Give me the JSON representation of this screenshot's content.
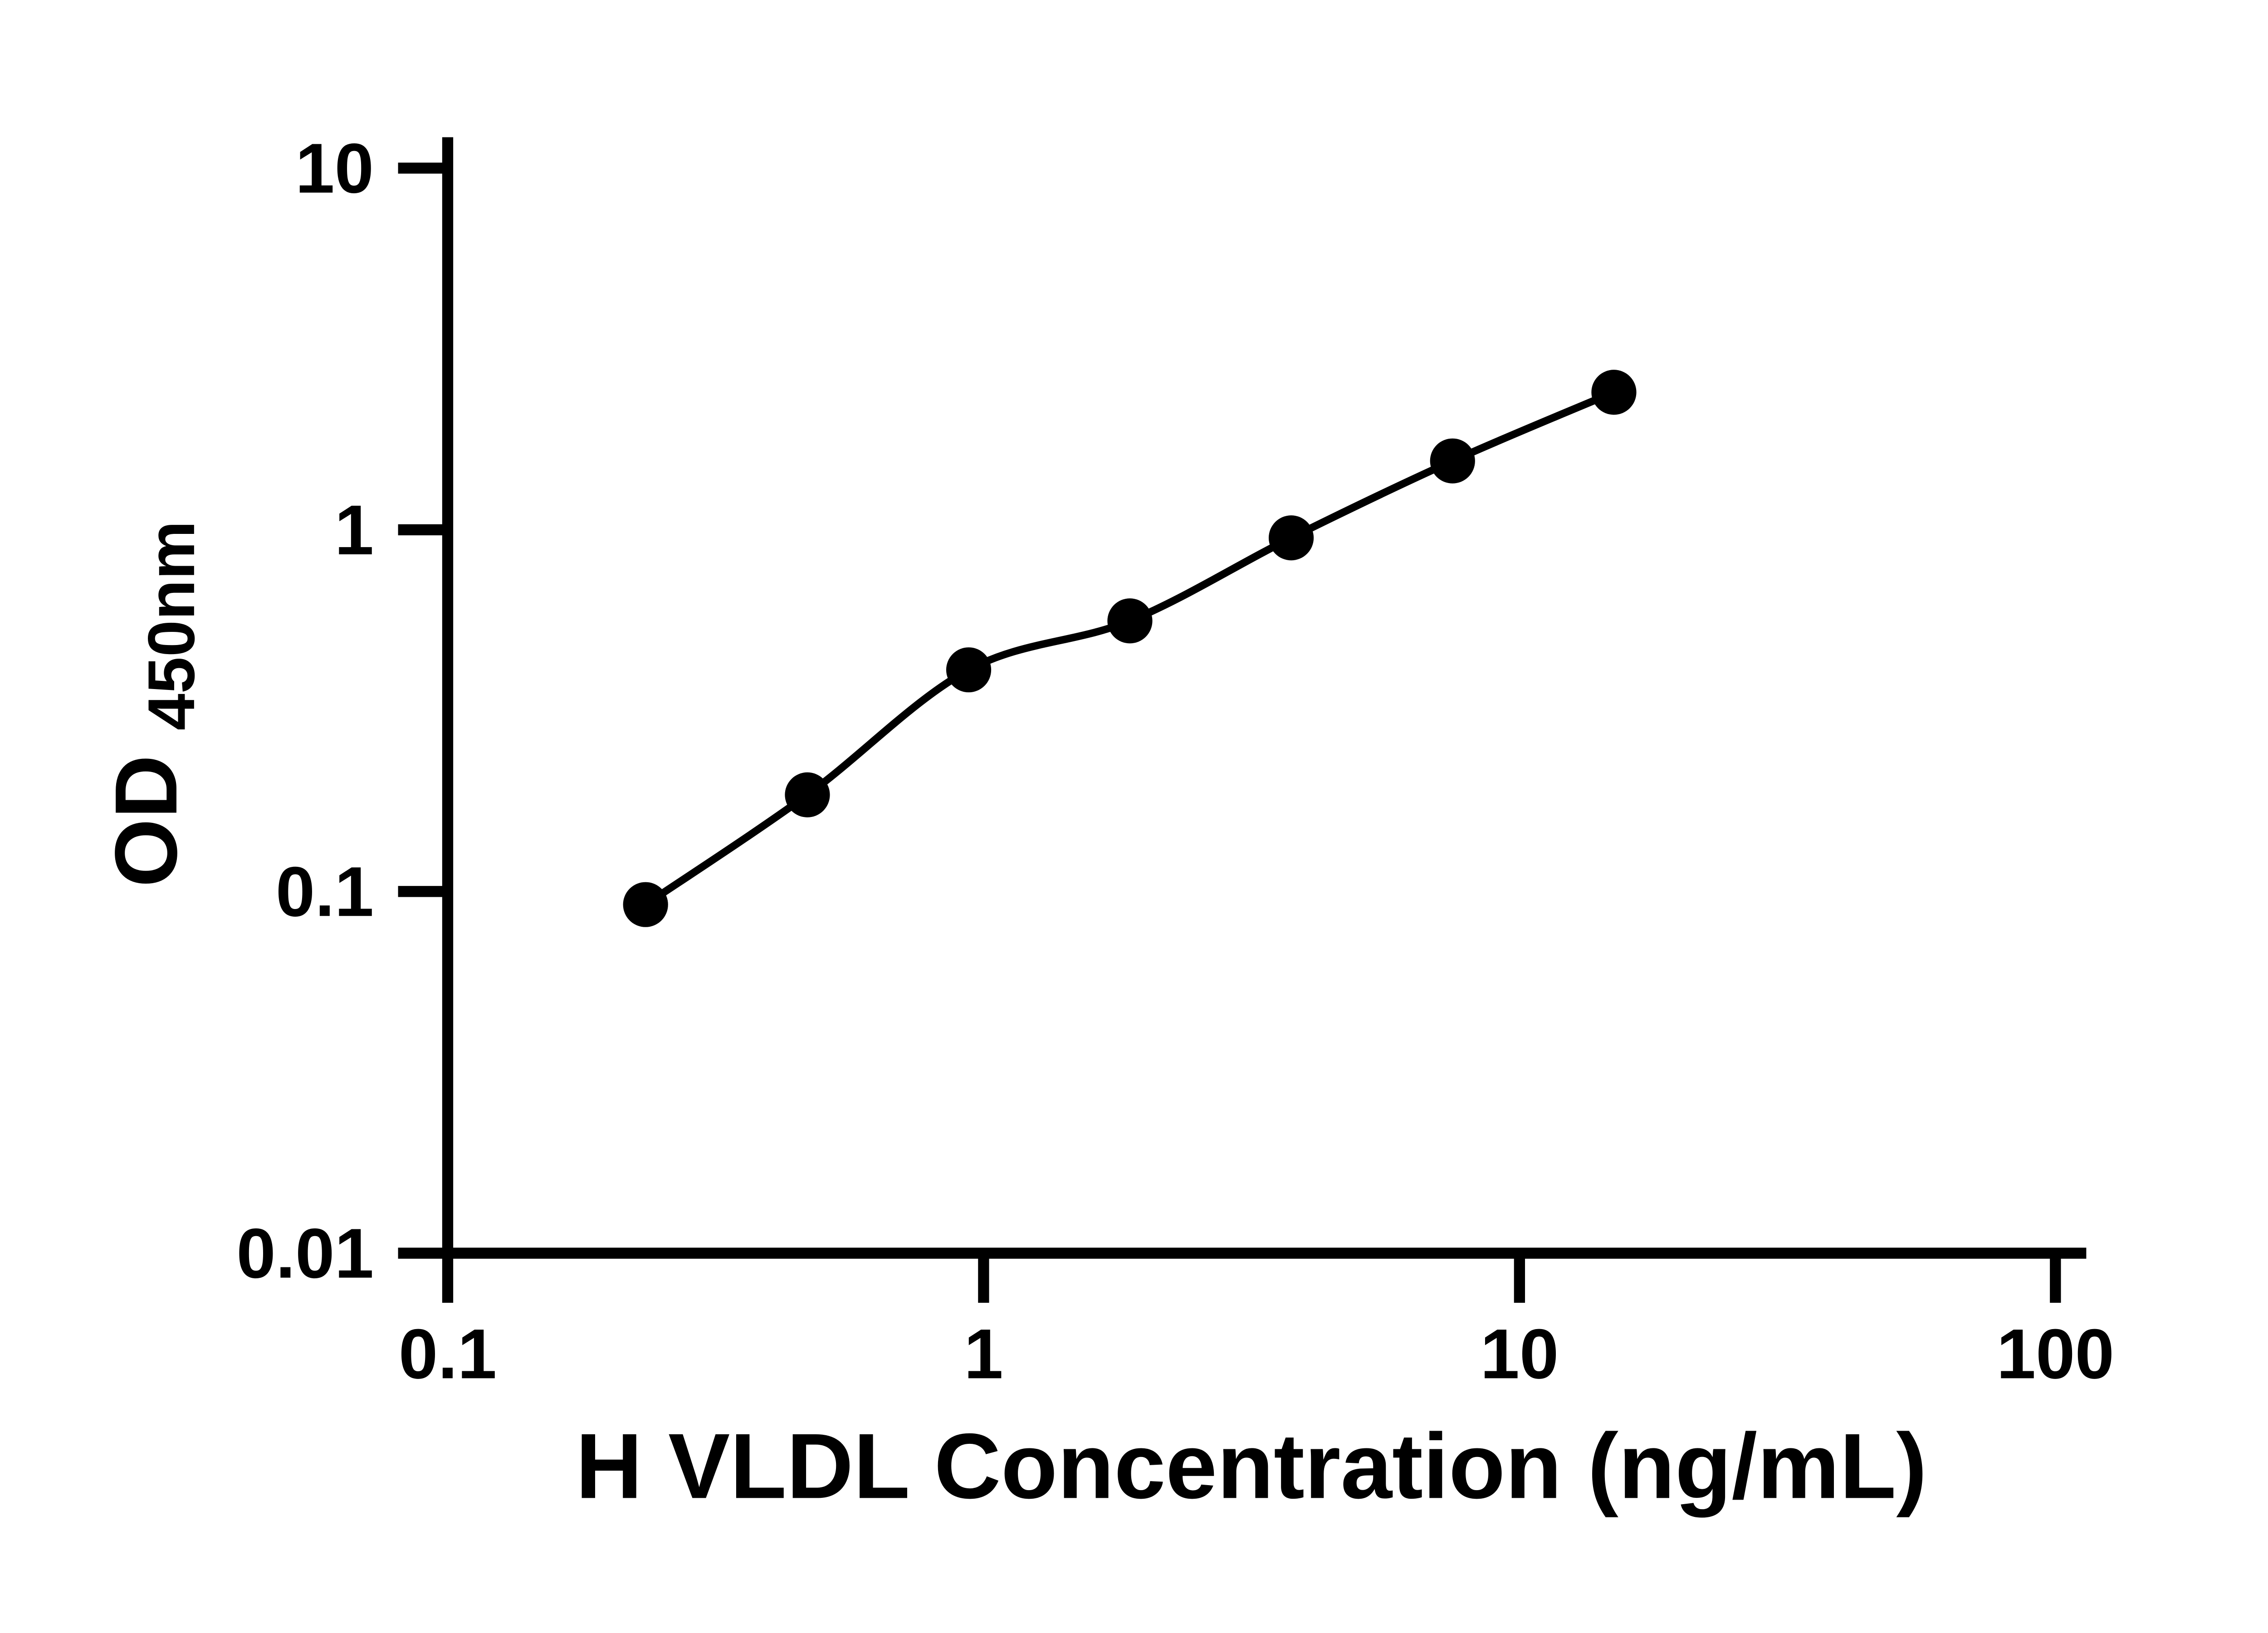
{
  "figure": {
    "background": "#ffffff",
    "y_axis_title_main": "OD",
    "y_axis_title_sub": "450nm"
  },
  "chart_data": {
    "type": "scatter",
    "title": "",
    "xlabel": "H VLDL Concentration (ng/mL)",
    "ylabel": "OD450nm",
    "x_scale": "log",
    "y_scale": "log",
    "xlim": [
      0.1,
      100
    ],
    "ylim": [
      0.01,
      10
    ],
    "grid": false,
    "legend": false,
    "x": [
      0.234,
      0.469,
      0.938,
      1.875,
      3.75,
      7.5,
      15
    ],
    "y": [
      0.092,
      0.185,
      0.41,
      0.56,
      0.95,
      1.55,
      2.4
    ],
    "fit_line": true,
    "axis_color": "#000000",
    "line_color": "#000000",
    "marker_color": "#000000",
    "x_ticks": [
      {
        "value": 0.1,
        "label": "0.1"
      },
      {
        "value": 1,
        "label": "1"
      },
      {
        "value": 10,
        "label": "10"
      },
      {
        "value": 100,
        "label": "100"
      }
    ],
    "y_ticks": [
      {
        "value": 0.01,
        "label": "0.01"
      },
      {
        "value": 0.1,
        "label": "0.1"
      },
      {
        "value": 1,
        "label": "1"
      },
      {
        "value": 10,
        "label": "10"
      }
    ]
  }
}
